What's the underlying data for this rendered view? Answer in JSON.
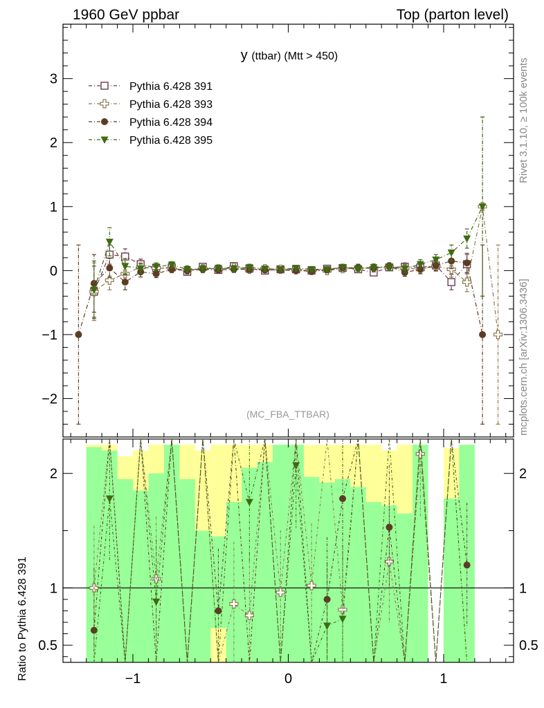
{
  "header": {
    "left": "1960 GeV ppbar",
    "right": "Top (parton level)"
  },
  "side_labels": {
    "rivet": "Rivet 3.1.10, ≥ 100k events",
    "mcplots": "mcplots.cern.ch [arXiv:1306.3436]"
  },
  "chart_data": [
    {
      "type": "line",
      "title_main": "y",
      "title_rest": "(ttbar) (Mtt > 450)",
      "analysis_tag": "(MC_FBA_TTBAR)",
      "xlim": [
        -1.45,
        1.45
      ],
      "ylim": [
        -2.6,
        3.85
      ],
      "xticks": [
        -1,
        0,
        1
      ],
      "yticks": [
        -2,
        -1,
        0,
        1,
        2,
        3
      ],
      "legend_position": "top-left",
      "colors": {
        "s391": "#6b3a4f",
        "s393": "#8c7a4f",
        "s394": "#5c3d24",
        "s395": "#3f6b12"
      },
      "series": [
        {
          "name": "Pythia 6.428 391",
          "marker": "open-square",
          "x": [
            -1.25,
            -1.15,
            -1.05,
            -0.95,
            -0.85,
            -0.75,
            -0.65,
            -0.55,
            -0.45,
            -0.35,
            -0.25,
            -0.15,
            -0.05,
            0.05,
            0.15,
            0.25,
            0.35,
            0.45,
            0.55,
            0.65,
            0.75,
            0.85,
            0.95,
            1.05,
            1.15
          ],
          "y": [
            -0.33,
            0.25,
            0.22,
            0.1,
            0.04,
            0.05,
            -0.02,
            0.06,
            0.01,
            0.07,
            0.03,
            0.0,
            0.02,
            0.02,
            0.0,
            0.03,
            0.04,
            0.02,
            -0.03,
            0.05,
            0.06,
            0.05,
            0.08,
            -0.18,
            0.1
          ],
          "err": [
            0.4,
            0.15,
            0.12,
            0.08,
            0.06,
            0.05,
            0.05,
            0.05,
            0.05,
            0.05,
            0.05,
            0.04,
            0.04,
            0.04,
            0.04,
            0.04,
            0.05,
            0.05,
            0.05,
            0.05,
            0.06,
            0.07,
            0.08,
            0.12,
            0.15
          ]
        },
        {
          "name": "Pythia 6.428 393",
          "marker": "open-cross",
          "x": [
            -1.25,
            -1.15,
            -1.05,
            -0.95,
            -0.85,
            -0.75,
            -0.65,
            -0.55,
            -0.45,
            -0.35,
            -0.25,
            -0.15,
            -0.05,
            0.05,
            0.15,
            0.25,
            0.35,
            0.45,
            0.55,
            0.65,
            0.75,
            0.85,
            0.95,
            1.05,
            1.15,
            1.25,
            1.35
          ],
          "y": [
            -0.33,
            -0.15,
            -0.05,
            0.05,
            0.04,
            0.03,
            0.01,
            0.03,
            0.02,
            0.05,
            0.02,
            0.03,
            0.02,
            0.01,
            0.0,
            0.0,
            0.03,
            0.03,
            0.04,
            0.06,
            0.04,
            0.02,
            0.07,
            0.02,
            -0.18,
            1.0,
            -1.0
          ],
          "err": [
            0.45,
            0.15,
            0.1,
            0.07,
            0.06,
            0.05,
            0.05,
            0.05,
            0.05,
            0.05,
            0.05,
            0.04,
            0.04,
            0.04,
            0.04,
            0.04,
            0.05,
            0.05,
            0.05,
            0.05,
            0.06,
            0.07,
            0.08,
            0.12,
            0.15,
            1.4,
            1.4
          ]
        },
        {
          "name": "Pythia 6.428 394",
          "marker": "filled-circle",
          "x": [
            -1.35,
            -1.25,
            -1.15,
            -1.05,
            -0.95,
            -0.85,
            -0.75,
            -0.65,
            -0.55,
            -0.45,
            -0.35,
            -0.25,
            -0.15,
            -0.05,
            0.05,
            0.15,
            0.25,
            0.35,
            0.45,
            0.55,
            0.65,
            0.75,
            0.85,
            0.95,
            1.05,
            1.15,
            1.25
          ],
          "y": [
            -1.0,
            -0.2,
            0.04,
            -0.18,
            -0.02,
            -0.05,
            0.02,
            0.0,
            0.02,
            0.01,
            0.02,
            0.02,
            0.01,
            0.01,
            0.0,
            -0.01,
            0.01,
            0.04,
            0.05,
            0.04,
            0.07,
            -0.03,
            0.02,
            0.08,
            0.15,
            0.12,
            -1.0
          ],
          "err": [
            1.4,
            0.45,
            0.15,
            0.12,
            0.08,
            0.06,
            0.05,
            0.05,
            0.05,
            0.05,
            0.05,
            0.05,
            0.04,
            0.04,
            0.04,
            0.04,
            0.04,
            0.05,
            0.05,
            0.05,
            0.05,
            0.06,
            0.07,
            0.08,
            0.12,
            0.15,
            1.4
          ]
        },
        {
          "name": "Pythia 6.428 395",
          "marker": "filled-triangle-down",
          "x": [
            -1.25,
            -1.15,
            -1.05,
            -0.95,
            -0.85,
            -0.75,
            -0.65,
            -0.55,
            -0.45,
            -0.35,
            -0.25,
            -0.15,
            -0.05,
            0.05,
            0.15,
            0.25,
            0.35,
            0.45,
            0.55,
            0.65,
            0.75,
            0.85,
            0.95,
            1.05,
            1.15,
            1.25
          ],
          "y": [
            -0.3,
            0.45,
            0.07,
            0.03,
            0.06,
            0.09,
            0.02,
            0.03,
            0.04,
            0.03,
            0.05,
            0.03,
            0.02,
            0.04,
            0.02,
            0.02,
            0.05,
            0.03,
            0.05,
            0.05,
            0.03,
            0.1,
            0.17,
            0.28,
            0.5,
            1.0
          ],
          "err": [
            0.45,
            0.22,
            0.12,
            0.08,
            0.06,
            0.05,
            0.05,
            0.05,
            0.05,
            0.05,
            0.05,
            0.04,
            0.04,
            0.04,
            0.04,
            0.04,
            0.05,
            0.05,
            0.05,
            0.05,
            0.06,
            0.07,
            0.08,
            0.12,
            0.15,
            1.4
          ]
        }
      ]
    },
    {
      "type": "line",
      "ylabel": "Ratio to Pythia 6.428 391",
      "xlim": [
        -1.45,
        1.45
      ],
      "ylim": [
        0.35,
        2.3
      ],
      "xticks": [
        -1,
        0,
        1
      ],
      "xtick_labels": [
        "−1",
        "0",
        "1"
      ],
      "yticks": [
        0.5,
        1,
        2
      ],
      "ytick_labels": [
        "0.5",
        "1",
        "2"
      ],
      "reference_line": 1,
      "band_colors": {
        "outer": "#ffff99",
        "inner": "#99ff99"
      },
      "bands": {
        "x_edges": [
          -1.3,
          -1.2,
          -1.1,
          -1.0,
          -0.9,
          -0.8,
          -0.7,
          -0.6,
          -0.5,
          -0.4,
          -0.3,
          -0.2,
          -0.1,
          0.0,
          0.1,
          0.2,
          0.3,
          0.4,
          0.5,
          0.6,
          0.7,
          0.8,
          0.9,
          1.0,
          1.1,
          1.2
        ],
        "outer_lo": [
          0.35,
          0.35,
          0.35,
          0.42,
          0.35,
          0.35,
          0.35,
          0.35,
          0.35,
          0.5,
          0.6,
          0.35,
          0.35,
          0.35,
          0.35,
          0.35,
          0.35,
          0.35,
          0.35,
          0.35,
          0.35,
          0.35,
          null,
          0.35,
          0.35
        ],
        "outer_hi": [
          2.25,
          2.25,
          2.15,
          2.2,
          2.25,
          2.25,
          2.25,
          2.2,
          2.25,
          2.25,
          2.25,
          2.25,
          2.25,
          2.25,
          2.25,
          2.25,
          2.25,
          2.25,
          2.25,
          2.2,
          2.25,
          2.25,
          null,
          2.22,
          2.25
        ],
        "inner_lo": [
          0.35,
          0.35,
          0.35,
          0.35,
          0.35,
          0.35,
          0.35,
          0.35,
          0.65,
          0.35,
          0.35,
          0.35,
          0.35,
          0.35,
          0.35,
          0.35,
          0.35,
          0.35,
          0.35,
          0.35,
          0.35,
          0.35,
          null,
          0.35,
          0.35
        ],
        "inner_hi": [
          2.23,
          2.2,
          1.95,
          1.85,
          2.0,
          2.25,
          1.95,
          1.5,
          1.45,
          1.75,
          2.05,
          2.1,
          2.25,
          2.25,
          1.97,
          1.92,
          1.95,
          1.88,
          1.75,
          1.72,
          1.65,
          2.25,
          null,
          1.78,
          2.25
        ]
      },
      "series": [
        {
          "name": "Pythia 6.428 393",
          "x": [
            -1.25,
            -1.15,
            -1.05,
            -0.95,
            -0.85,
            -0.75,
            -0.65,
            -0.55,
            -0.45,
            -0.35,
            -0.25,
            -0.15,
            -0.05,
            0.05,
            0.15,
            0.25,
            0.35,
            0.45,
            0.55,
            0.65,
            0.75,
            0.85,
            0.95,
            1.05,
            1.15
          ],
          "y": [
            1.0,
            null,
            null,
            null,
            1.08,
            null,
            null,
            null,
            null,
            0.86,
            0.76,
            null,
            0.96,
            null,
            1.02,
            null,
            0.81,
            null,
            null,
            1.23,
            null,
            2.17,
            null,
            null,
            null
          ]
        },
        {
          "name": "Pythia 6.428 394",
          "x": [
            -1.25,
            -1.15,
            -1.05,
            -0.95,
            -0.85,
            -0.75,
            -0.65,
            -0.55,
            -0.45,
            -0.35,
            -0.25,
            -0.15,
            -0.05,
            0.05,
            0.15,
            0.25,
            0.35,
            0.45,
            0.55,
            0.65,
            0.75,
            0.85,
            0.95,
            1.05,
            1.15
          ],
          "y": [
            0.63,
            null,
            null,
            null,
            null,
            null,
            null,
            null,
            0.8,
            null,
            null,
            null,
            null,
            null,
            null,
            0.9,
            1.78,
            null,
            null,
            1.53,
            null,
            null,
            null,
            null,
            1.2
          ]
        },
        {
          "name": "Pythia 6.428 395",
          "x": [
            -1.25,
            -1.15,
            -1.05,
            -0.95,
            -0.85,
            -0.75,
            -0.65,
            -0.55,
            -0.45,
            -0.35,
            -0.25,
            -0.15,
            -0.05,
            0.05,
            0.15,
            0.25,
            0.35,
            0.45,
            0.55,
            0.65,
            0.75,
            0.85,
            0.95,
            1.05,
            1.15
          ],
          "y": [
            null,
            1.78,
            null,
            null,
            0.88,
            null,
            null,
            null,
            null,
            null,
            1.75,
            null,
            null,
            2.07,
            null,
            0.67,
            0.73,
            null,
            null,
            null,
            null,
            null,
            null,
            null,
            null
          ]
        }
      ]
    }
  ]
}
